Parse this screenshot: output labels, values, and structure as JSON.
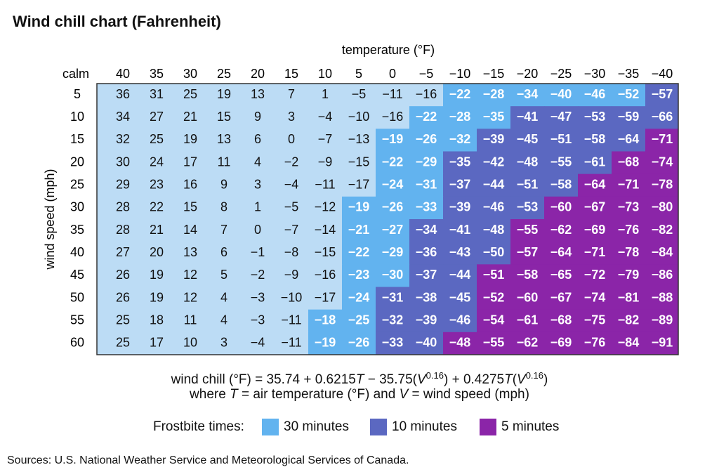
{
  "title": "Wind chill chart (Fahrenheit)",
  "table": {
    "column_title": "temperature (°F)",
    "row_title": "wind speed (mph)",
    "corner": "calm",
    "columns": [
      "40",
      "35",
      "30",
      "25",
      "20",
      "15",
      "10",
      "5",
      "0",
      "−5",
      "−10",
      "−15",
      "−20",
      "−25",
      "−30",
      "−35",
      "−40"
    ],
    "rows": [
      {
        "label": "5",
        "cells": [
          "36",
          "31",
          "25",
          "19",
          "13",
          "7",
          "1",
          "−5",
          "−11",
          "−16",
          "−22",
          "−28",
          "−34",
          "−40",
          "−46",
          "−52",
          "−57"
        ]
      },
      {
        "label": "10",
        "cells": [
          "34",
          "27",
          "21",
          "15",
          "9",
          "3",
          "−4",
          "−10",
          "−16",
          "−22",
          "−28",
          "−35",
          "−41",
          "−47",
          "−53",
          "−59",
          "−66"
        ]
      },
      {
        "label": "15",
        "cells": [
          "32",
          "25",
          "19",
          "13",
          "6",
          "0",
          "−7",
          "−13",
          "−19",
          "−26",
          "−32",
          "−39",
          "−45",
          "−51",
          "−58",
          "−64",
          "−71"
        ]
      },
      {
        "label": "20",
        "cells": [
          "30",
          "24",
          "17",
          "11",
          "4",
          "−2",
          "−9",
          "−15",
          "−22",
          "−29",
          "−35",
          "−42",
          "−48",
          "−55",
          "−61",
          "−68",
          "−74"
        ]
      },
      {
        "label": "25",
        "cells": [
          "29",
          "23",
          "16",
          "9",
          "3",
          "−4",
          "−11",
          "−17",
          "−24",
          "−31",
          "−37",
          "−44",
          "−51",
          "−58",
          "−64",
          "−71",
          "−78"
        ]
      },
      {
        "label": "30",
        "cells": [
          "28",
          "22",
          "15",
          "8",
          "1",
          "−5",
          "−12",
          "−19",
          "−26",
          "−33",
          "−39",
          "−46",
          "−53",
          "−60",
          "−67",
          "−73",
          "−80"
        ]
      },
      {
        "label": "35",
        "cells": [
          "28",
          "21",
          "14",
          "7",
          "0",
          "−7",
          "−14",
          "−21",
          "−27",
          "−34",
          "−41",
          "−48",
          "−55",
          "−62",
          "−69",
          "−76",
          "−82"
        ]
      },
      {
        "label": "40",
        "cells": [
          "27",
          "20",
          "13",
          "6",
          "−1",
          "−8",
          "−15",
          "−22",
          "−29",
          "−36",
          "−43",
          "−50",
          "−57",
          "−64",
          "−71",
          "−78",
          "−84"
        ]
      },
      {
        "label": "45",
        "cells": [
          "26",
          "19",
          "12",
          "5",
          "−2",
          "−9",
          "−16",
          "−23",
          "−30",
          "−37",
          "−44",
          "−51",
          "−58",
          "−65",
          "−72",
          "−79",
          "−86"
        ]
      },
      {
        "label": "50",
        "cells": [
          "26",
          "19",
          "12",
          "4",
          "−3",
          "−10",
          "−17",
          "−24",
          "−31",
          "−38",
          "−45",
          "−52",
          "−60",
          "−67",
          "−74",
          "−81",
          "−88"
        ]
      },
      {
        "label": "55",
        "cells": [
          "25",
          "18",
          "11",
          "4",
          "−3",
          "−11",
          "−18",
          "−25",
          "−32",
          "−39",
          "−46",
          "−54",
          "−61",
          "−68",
          "−75",
          "−82",
          "−89"
        ]
      },
      {
        "label": "60",
        "cells": [
          "25",
          "17",
          "10",
          "3",
          "−4",
          "−11",
          "−19",
          "−26",
          "−33",
          "−40",
          "−48",
          "−55",
          "−62",
          "−69",
          "−76",
          "−84",
          "−91"
        ]
      }
    ]
  },
  "formula": {
    "line1": [
      "wind chill (°F) = 35.74 + 0.6215",
      "T",
      " − 35.75(",
      "V",
      "0.16",
      ") + 0.4275",
      "T",
      "(",
      "V",
      "0.16",
      ")"
    ],
    "line2": [
      "where ",
      "T",
      " = air temperature (°F) and ",
      "V",
      " = wind speed (mph)"
    ]
  },
  "legend": {
    "title": "Frostbite times:",
    "items": [
      {
        "label": "30 minutes",
        "color": "#62b3ef"
      },
      {
        "label": "10 minutes",
        "color": "#5b68c1"
      },
      {
        "label": "5 minutes",
        "color": "#8b25a8"
      }
    ]
  },
  "source": "Sources: U.S. National Weather Service and Meteorological Services of Canada."
}
